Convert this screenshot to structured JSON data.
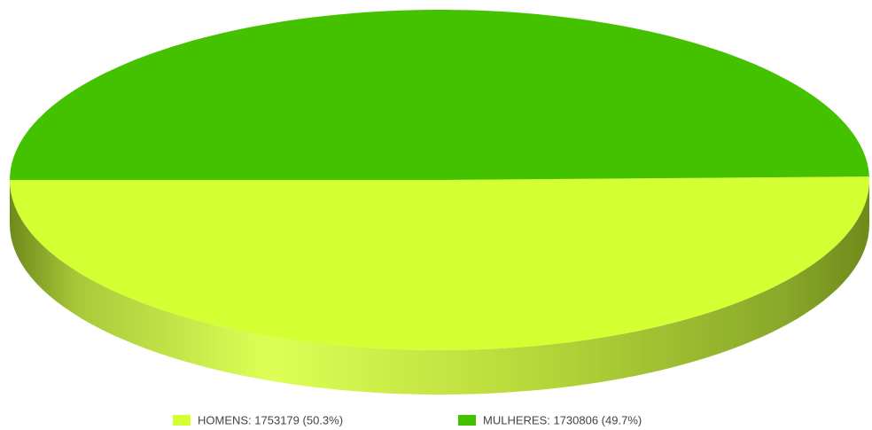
{
  "chart_data": {
    "type": "pie",
    "3d": true,
    "categories": [
      "HOMENS: 1753179 (50.3%)",
      "MULHERES: 1730806 (49.7%)"
    ],
    "values": [
      1753179,
      1730806
    ],
    "colors": [
      "#d4ff33",
      "#44c200"
    ],
    "legend": "bottom"
  }
}
